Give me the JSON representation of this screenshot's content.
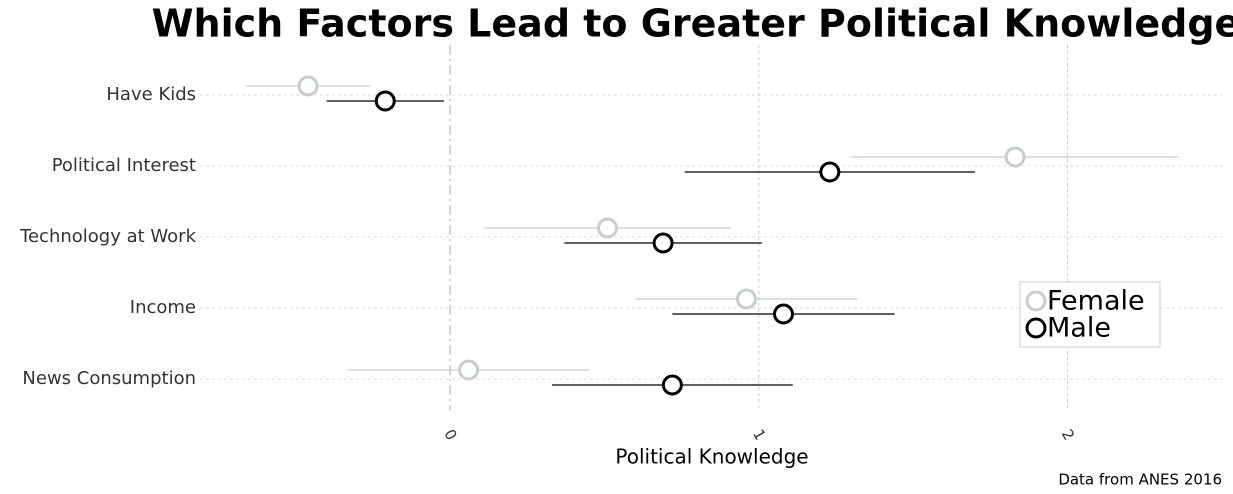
{
  "chart_data": {
    "type": "dot_errorbar",
    "title": "Which Factors Lead to Greater Political Knowledge?",
    "x_label": "Political Knowledge",
    "caption": "Data from ANES 2016",
    "categories": [
      "Have Kids",
      "Political Interest",
      "Technology at Work",
      "Income",
      "News Consumption"
    ],
    "series": [
      {
        "name": "Female",
        "color": "#c5cdcd",
        "values": [
          -0.46,
          1.83,
          0.51,
          0.96,
          0.06
        ],
        "errors": [
          0.2,
          0.53,
          0.4,
          0.36,
          0.39
        ]
      },
      {
        "name": "Male",
        "color": "#000000",
        "values": [
          -0.21,
          1.23,
          0.69,
          1.08,
          0.72
        ],
        "errors": [
          0.19,
          0.47,
          0.32,
          0.36,
          0.39
        ]
      }
    ],
    "xlim": [
      -0.81,
      2.51
    ],
    "xticks": [
      0,
      1,
      2
    ],
    "grid": true,
    "legend": "right"
  }
}
